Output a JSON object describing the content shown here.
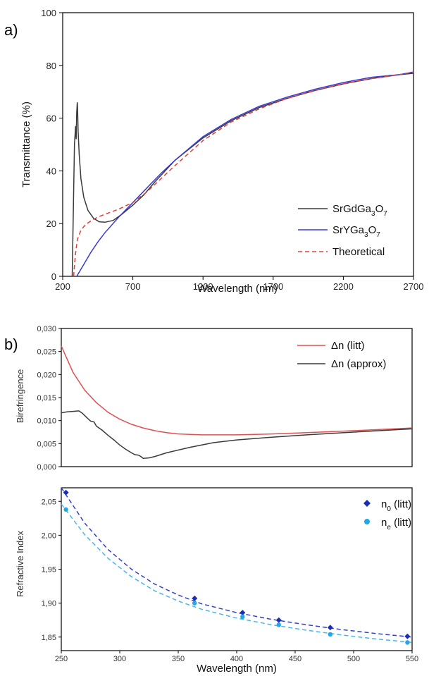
{
  "chart_data": [
    {
      "type": "line",
      "panel_label": "a)",
      "xlabel": "Wavelength (nm)",
      "ylabel": "Transmittance (%)",
      "xlim": [
        200,
        2700
      ],
      "ylim": [
        0,
        100
      ],
      "xticks": [
        200,
        700,
        1200,
        1700,
        2200,
        2700
      ],
      "yticks": [
        0,
        20,
        40,
        60,
        80,
        100
      ],
      "grid": false,
      "legend_position": "bottom-right",
      "series": [
        {
          "name": "SrGdGa3O7",
          "label_main": "SrGdGa",
          "label_sub1": "3",
          "label_mid": "O",
          "label_sub2": "7",
          "color": "#3a3a3a",
          "dash": "none",
          "x": [
            268,
            276,
            284,
            292,
            296,
            300,
            304,
            306,
            310,
            318,
            330,
            350,
            380,
            420,
            460,
            500,
            560,
            620,
            700,
            780,
            860,
            1000,
            1200,
            1400,
            1600,
            1800,
            2000,
            2200,
            2400,
            2600,
            2700
          ],
          "y": [
            0,
            25,
            50,
            57,
            52,
            62,
            66,
            64,
            55,
            46,
            37,
            30,
            25,
            22,
            20.7,
            20.5,
            21.2,
            23.5,
            27,
            31,
            36,
            44,
            52.5,
            59,
            64,
            67.5,
            70.5,
            73,
            75,
            76.5,
            77
          ]
        },
        {
          "name": "SrYGa3O7",
          "label_main": "SrYGa",
          "label_sub1": "3",
          "label_mid": "O",
          "label_sub2": "7",
          "color": "#3a3ad6",
          "dash": "none",
          "x": [
            300,
            350,
            400,
            450,
            500,
            600,
            700,
            800,
            900,
            1000,
            1200,
            1400,
            1600,
            1800,
            2000,
            2200,
            2400,
            2600,
            2700
          ],
          "y": [
            0,
            4.5,
            9,
            13,
            16.5,
            22.5,
            28,
            33.5,
            39,
            44,
            53,
            59.5,
            64.5,
            68,
            71,
            73.5,
            75.5,
            76.5,
            77.5
          ]
        },
        {
          "name": "Theoretical",
          "label_main": "Theoretical",
          "label_sub1": "",
          "label_mid": "",
          "label_sub2": "",
          "color": "#e0403a",
          "dash": "6,4",
          "x": [
            278,
            290,
            305,
            330,
            360,
            400,
            450,
            500,
            600,
            700,
            800,
            900,
            1000,
            1200,
            1400,
            1600,
            1800,
            2000,
            2200,
            2400,
            2600,
            2700
          ],
          "y": [
            0,
            8,
            14,
            17.5,
            19.5,
            21,
            22.5,
            23.5,
            25.5,
            28,
            32,
            37,
            42,
            51.5,
            58.5,
            63.5,
            67.5,
            70.5,
            73,
            75,
            76.5,
            77.5
          ]
        }
      ]
    },
    {
      "type": "line",
      "panel_label": "b)",
      "xlabel": "",
      "ylabel": "Birefringence",
      "xlim": [
        250,
        550
      ],
      "ylim": [
        0,
        0.03
      ],
      "yticks": [
        0,
        0.005,
        0.01,
        0.015,
        0.02,
        0.025,
        0.03
      ],
      "ytick_labels": [
        "0,000",
        "0,005",
        "0,010",
        "0,015",
        "0,020",
        "0,025",
        "0,030"
      ],
      "grid": false,
      "legend_position": "top-right",
      "series": [
        {
          "name": "Δn (litt)",
          "color": "#e05050",
          "dash": "none",
          "x": [
            250,
            260,
            270,
            280,
            290,
            300,
            310,
            320,
            330,
            340,
            350,
            360,
            370,
            380,
            400,
            430,
            460,
            500,
            550
          ],
          "y": [
            0.0262,
            0.0205,
            0.0166,
            0.0139,
            0.0118,
            0.0103,
            0.0092,
            0.0084,
            0.0078,
            0.0074,
            0.0071,
            0.007,
            0.0069,
            0.0069,
            0.0069,
            0.0071,
            0.0074,
            0.0078,
            0.0084
          ]
        },
        {
          "name": "Δn (approx)",
          "color": "#3a3a3a",
          "dash": "none",
          "x": [
            250,
            255,
            260,
            265,
            268,
            272,
            275,
            278,
            280,
            285,
            290,
            295,
            300,
            305,
            310,
            313,
            316,
            318,
            320,
            325,
            330,
            340,
            360,
            380,
            400,
            430,
            460,
            500,
            550
          ],
          "y": [
            0.0117,
            0.0119,
            0.012,
            0.0121,
            0.0116,
            0.0106,
            0.0099,
            0.0097,
            0.0088,
            0.0079,
            0.0068,
            0.0058,
            0.0047,
            0.0038,
            0.003,
            0.0026,
            0.0025,
            0.0022,
            0.0018,
            0.0019,
            0.0022,
            0.003,
            0.0042,
            0.0052,
            0.0058,
            0.0064,
            0.0069,
            0.0075,
            0.0082
          ]
        }
      ]
    },
    {
      "type": "scatter",
      "panel_label": "",
      "xlabel": "Wavelength (nm)",
      "ylabel": "Refractive Index",
      "xlim": [
        250,
        550
      ],
      "ylim": [
        1.83,
        2.07
      ],
      "xticks": [
        250,
        300,
        350,
        400,
        450,
        500,
        550
      ],
      "yticks": [
        1.85,
        1.9,
        1.95,
        2.0,
        2.05
      ],
      "ytick_labels": [
        "1,85",
        "1,90",
        "1,95",
        "2,00",
        "2,05"
      ],
      "grid": false,
      "legend_position": "top-right",
      "series": [
        {
          "name": "n0 (litt)",
          "label_main": "n",
          "label_sub": "0",
          "label_tail": " (litt)",
          "color": "#1b2fb5",
          "marker": "diamond",
          "x": [
            254,
            364,
            405,
            436,
            480,
            546
          ],
          "y": [
            2.063,
            1.907,
            1.886,
            1.875,
            1.864,
            1.851
          ]
        },
        {
          "name": "ne (litt)",
          "label_main": "n",
          "label_sub": "e",
          "label_tail": " (litt)",
          "color": "#22a8e6",
          "marker": "circle",
          "x": [
            254,
            364,
            405,
            436,
            480,
            546
          ],
          "y": [
            2.038,
            1.9,
            1.88,
            1.868,
            1.854,
            1.842
          ]
        }
      ],
      "fits": [
        {
          "series": "n0 (litt)",
          "color": "#3340c8",
          "dash": "6,4",
          "x": [
            250,
            270,
            290,
            310,
            330,
            350,
            370,
            400,
            430,
            460,
            490,
            520,
            550
          ],
          "y": [
            2.07,
            2.018,
            1.979,
            1.95,
            1.928,
            1.912,
            1.899,
            1.886,
            1.876,
            1.868,
            1.861,
            1.855,
            1.85
          ]
        },
        {
          "series": "ne (litt)",
          "color": "#45b8ec",
          "dash": "6,4",
          "x": [
            250,
            270,
            290,
            310,
            330,
            350,
            370,
            400,
            430,
            460,
            490,
            520,
            550
          ],
          "y": [
            2.046,
            2.001,
            1.966,
            1.939,
            1.918,
            1.903,
            1.891,
            1.878,
            1.868,
            1.86,
            1.853,
            1.847,
            1.842
          ]
        }
      ]
    }
  ]
}
